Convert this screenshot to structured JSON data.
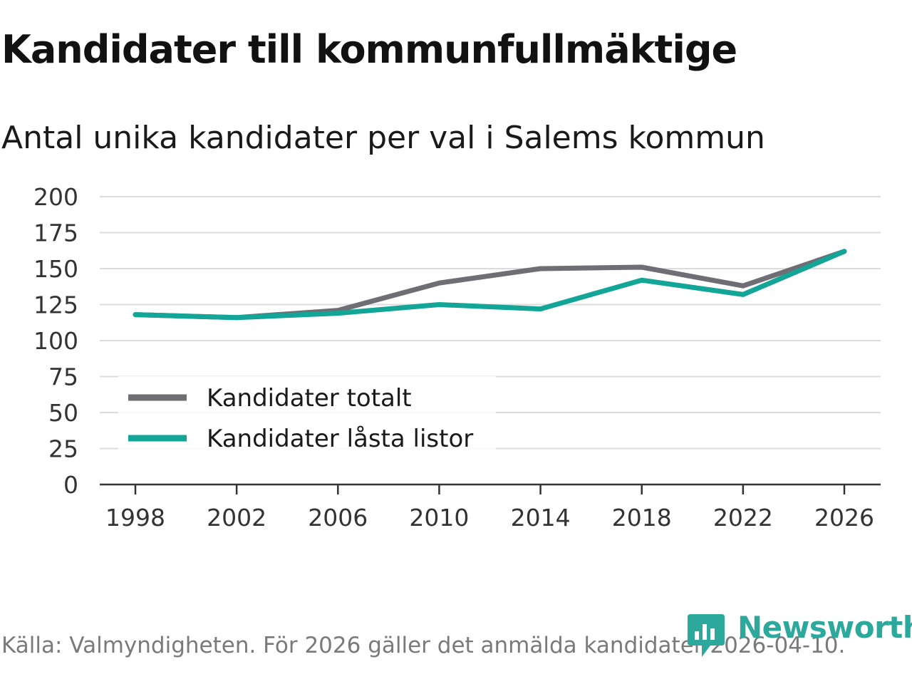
{
  "header": {
    "title": "Kandidater till kommunfullmäktige",
    "subtitle": "Antal unika kandidater per val i Salems kommun"
  },
  "chart_data": {
    "type": "line",
    "x": [
      "1998",
      "2002",
      "2006",
      "2010",
      "2014",
      "2018",
      "2022",
      "2026"
    ],
    "series": [
      {
        "name": "Kandidater totalt",
        "color": "#6e6e74",
        "values": [
          118,
          116,
          121,
          140,
          150,
          151,
          138,
          162
        ]
      },
      {
        "name": "Kandidater låsta listor",
        "color": "#13a597",
        "values": [
          118,
          116,
          119,
          125,
          122,
          142,
          132,
          162
        ]
      }
    ],
    "ylim": [
      0,
      200
    ],
    "yticks": [
      "0",
      "25",
      "50",
      "75",
      "100",
      "125",
      "150",
      "175",
      "200"
    ],
    "xlabel": "",
    "ylabel": "",
    "grid": true,
    "legend_position": "bottom-left"
  },
  "footer": {
    "source": "Källa: Valmyndigheten. För 2026 gäller det anmälda kandidater 2026-04-10."
  },
  "logo": {
    "name": "Newsworthy",
    "icon": "bar-chart-icon",
    "color": "#2da89c"
  }
}
